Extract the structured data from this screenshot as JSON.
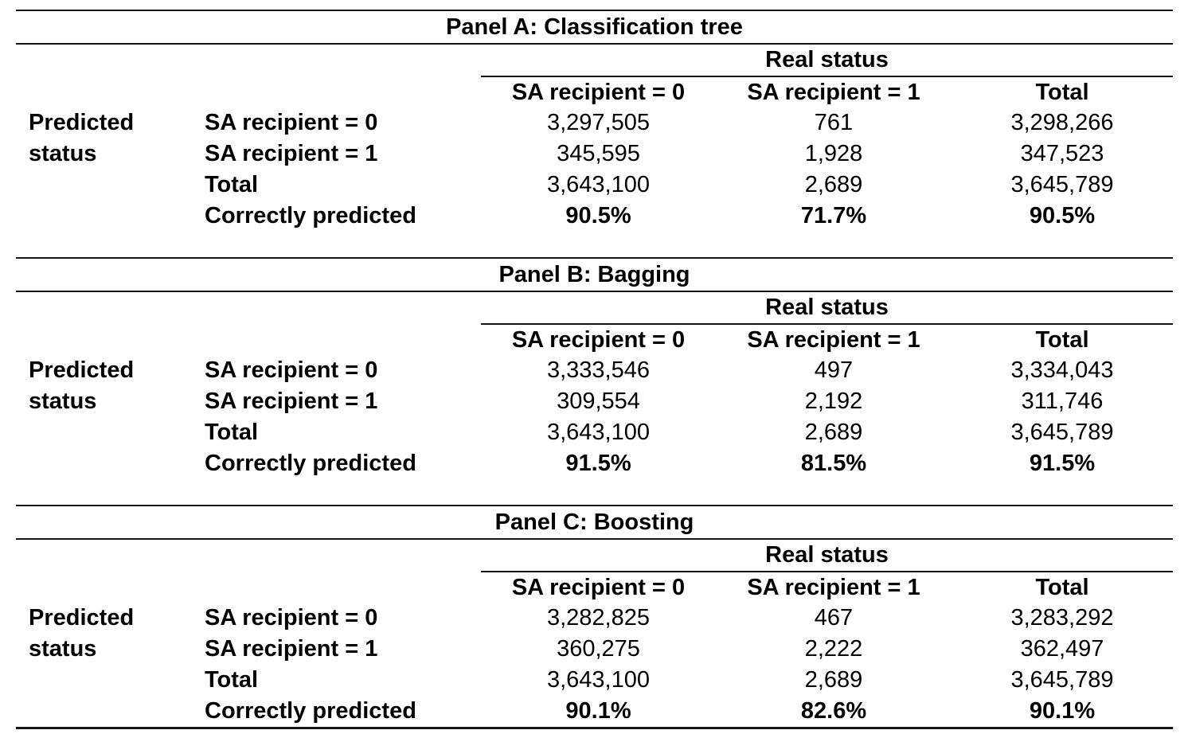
{
  "colors": {
    "text": "#000000",
    "rule": "#151515",
    "background": "#ffffff"
  },
  "table": {
    "real_status_label": "Real status",
    "predicted_label_line1": "Predicted",
    "predicted_label_line2": "status",
    "col_headers": [
      "SA recipient = 0",
      "SA recipient = 1",
      "Total"
    ],
    "panels": [
      {
        "title": "Panel A: Classification tree",
        "rows": [
          {
            "label": "SA recipient = 0",
            "values": [
              "3,297,505",
              "761",
              "3,298,266"
            ]
          },
          {
            "label": "SA recipient = 1",
            "values": [
              "345,595",
              "1,928",
              "347,523"
            ]
          },
          {
            "label": "Total",
            "values": [
              "3,643,100",
              "2,689",
              "3,645,789"
            ]
          },
          {
            "label": "Correctly predicted",
            "values": [
              "90.5%",
              "71.7%",
              "90.5%"
            ]
          }
        ]
      },
      {
        "title": "Panel B: Bagging",
        "rows": [
          {
            "label": "SA recipient = 0",
            "values": [
              "3,333,546",
              "497",
              "3,334,043"
            ]
          },
          {
            "label": "SA recipient = 1",
            "values": [
              "309,554",
              "2,192",
              "311,746"
            ]
          },
          {
            "label": "Total",
            "values": [
              "3,643,100",
              "2,689",
              "3,645,789"
            ]
          },
          {
            "label": "Correctly predicted",
            "values": [
              "91.5%",
              "81.5%",
              "91.5%"
            ]
          }
        ]
      },
      {
        "title": "Panel C: Boosting",
        "rows": [
          {
            "label": "SA recipient = 0",
            "values": [
              "3,282,825",
              "467",
              "3,283,292"
            ]
          },
          {
            "label": "SA recipient = 1",
            "values": [
              "360,275",
              "2,222",
              "362,497"
            ]
          },
          {
            "label": "Total",
            "values": [
              "3,643,100",
              "2,689",
              "3,645,789"
            ]
          },
          {
            "label": "Correctly predicted",
            "values": [
              "90.1%",
              "82.6%",
              "90.1%"
            ]
          }
        ]
      }
    ]
  }
}
